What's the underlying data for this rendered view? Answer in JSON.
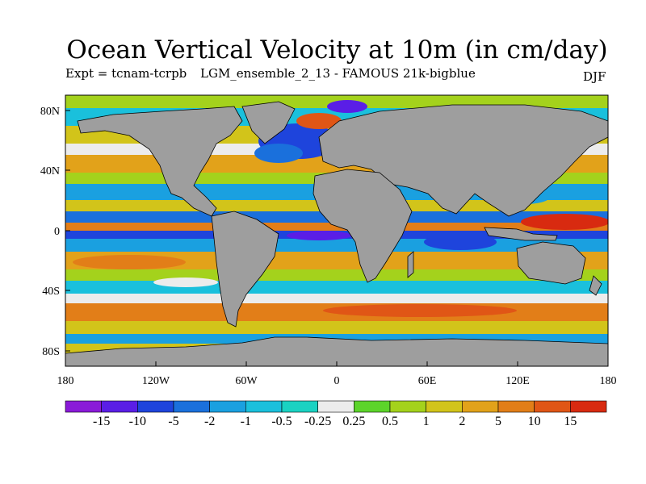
{
  "title": "Ocean Vertical Velocity at 10m (in cm/day)",
  "experiment": "Expt = tcnam-tcrpb",
  "run": "LGM_ensemble_2_13 - FAMOUS 21k-bigblue",
  "season": "DJF",
  "map": {
    "projection": "cylindrical equidistant",
    "land_color": "#9e9e9e",
    "lon_range": [
      -180,
      180
    ],
    "lat_range": [
      -90,
      90
    ],
    "lat_ticks": [
      "80N",
      "40N",
      "0",
      "40S",
      "80S"
    ],
    "lon_ticks": [
      "180",
      "120W",
      "60W",
      "0",
      "60E",
      "120E",
      "180"
    ]
  },
  "colorbar": {
    "labels": [
      "-15",
      "-10",
      "-5",
      "-2",
      "-1",
      "-0.5",
      "-0.25",
      "0.25",
      "0.5",
      "1",
      "2",
      "5",
      "10",
      "15"
    ],
    "colors": [
      "#8a1ad8",
      "#5a1ee6",
      "#1e44dc",
      "#1a70dc",
      "#1aa0e0",
      "#1ac0dc",
      "#1ad2c2",
      "#ececec",
      "#5cd42a",
      "#a4d21c",
      "#d2c41a",
      "#e2a21a",
      "#e27e18",
      "#e05616",
      "#d82a10"
    ]
  }
}
